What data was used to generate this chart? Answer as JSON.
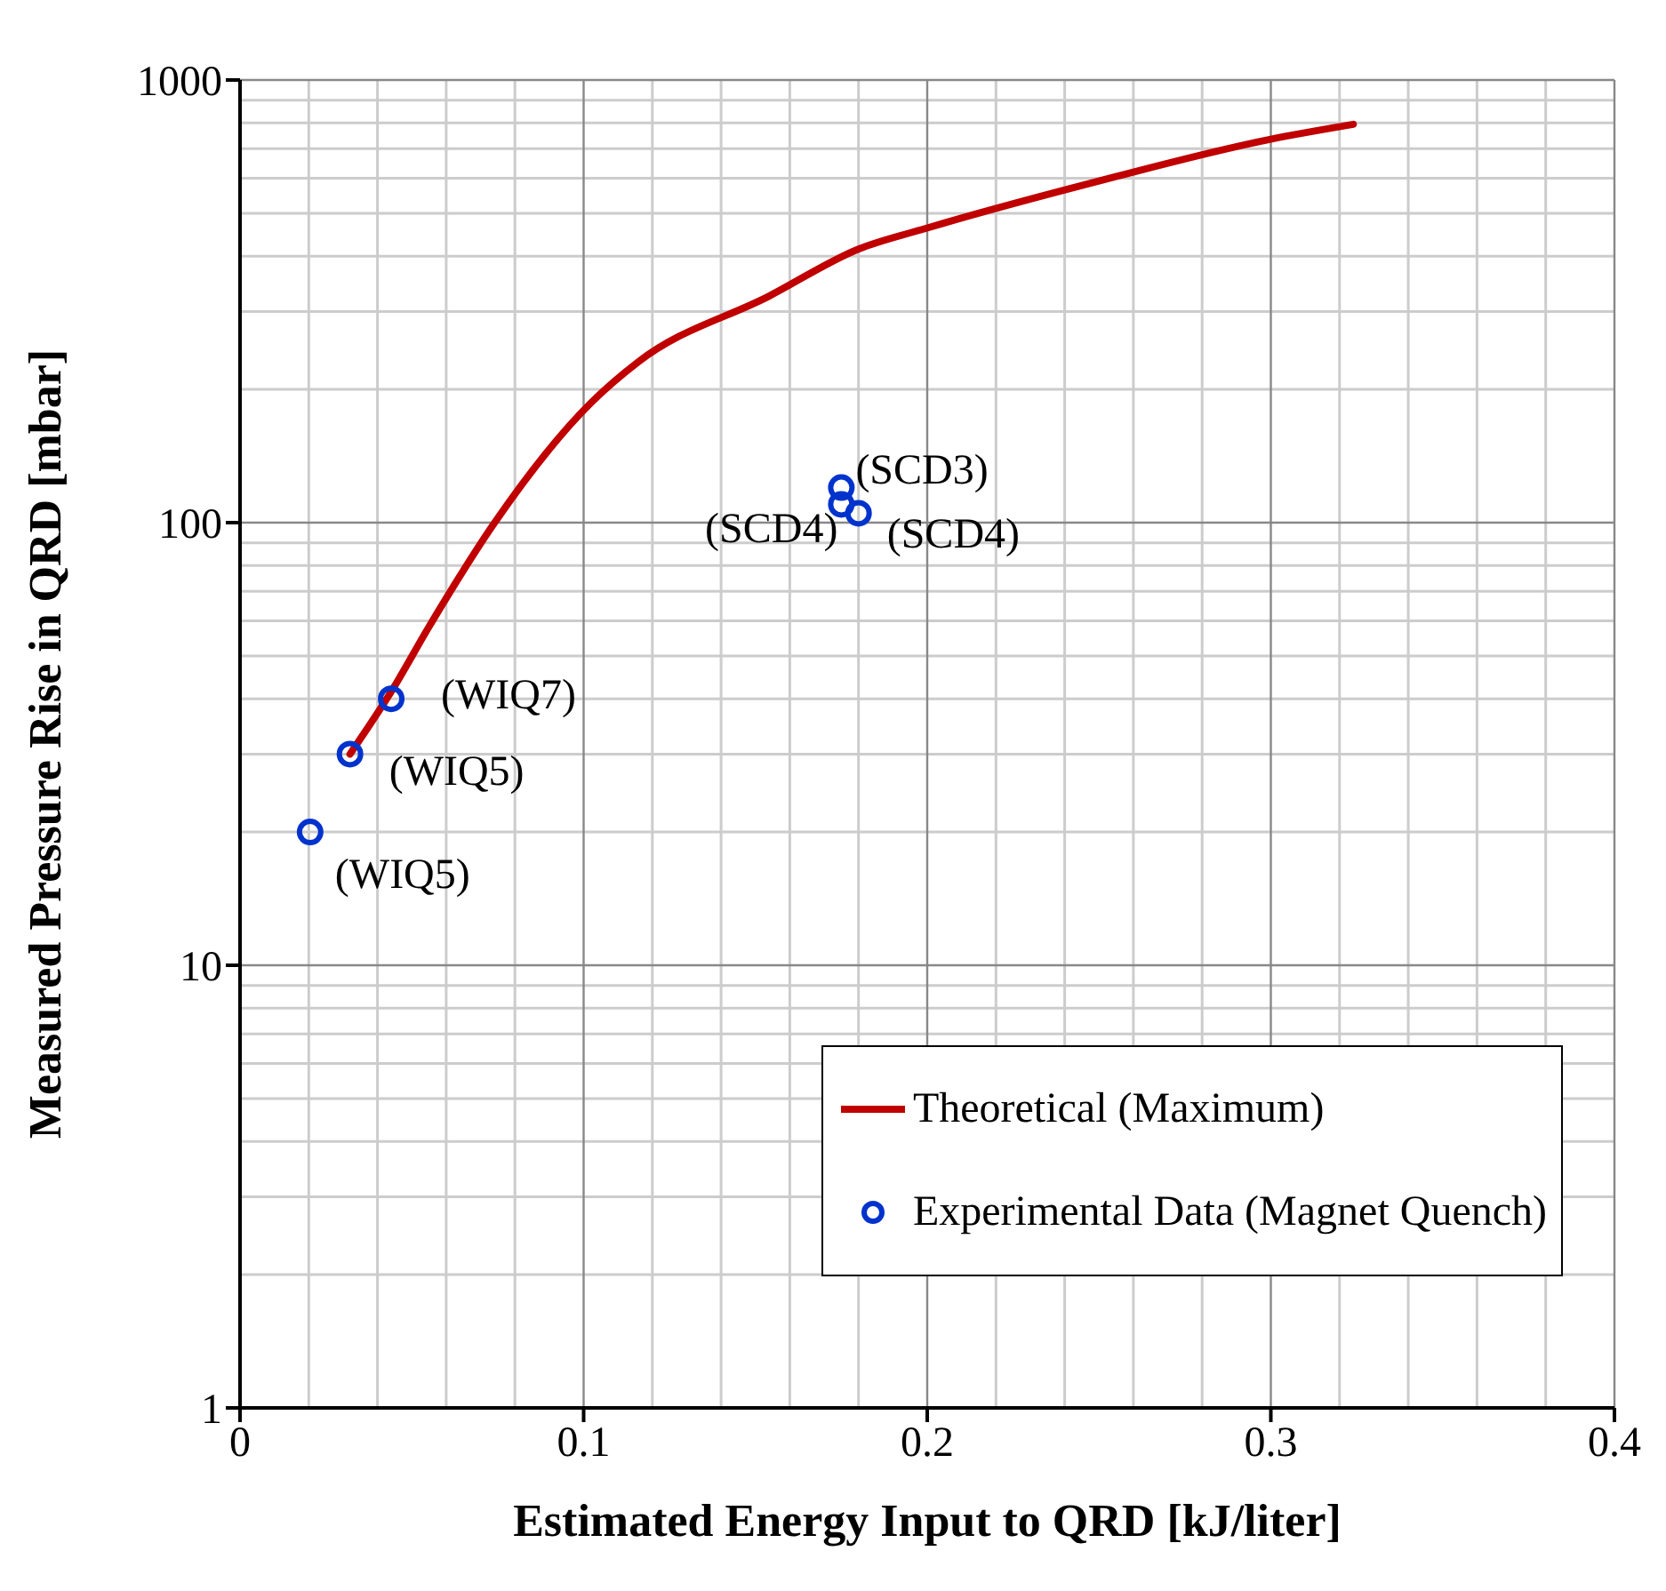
{
  "chart_data": {
    "type": "line",
    "xlabel": "Estimated Energy Input to QRD [kJ/liter]",
    "ylabel": "Measured Pressure Rise in QRD [mbar]",
    "series": [
      {
        "name": "Theoretical (Maximum)",
        "color": "#c00000",
        "marker": "none",
        "x": [
          0.032,
          0.0444,
          0.0549,
          0.0741,
          0.102,
          0.116,
          0.154,
          0.18,
          0.2,
          0.247,
          0.3,
          0.324
        ],
        "values": [
          30,
          42,
          58,
          100,
          186,
          231,
          325,
          415,
          463,
          583,
          735,
          794
        ]
      },
      {
        "name": "Experimental Data (Magnet Quench)",
        "type": "scatter",
        "color": "#0033cc",
        "marker": "circle",
        "x": [
          0.0204,
          0.032,
          0.044,
          0.175,
          0.175,
          0.18
        ],
        "values": [
          20,
          30,
          40,
          120,
          110,
          105
        ]
      }
    ],
    "xlim": [
      0,
      0.4
    ],
    "xticks": [
      0,
      0.1,
      0.2,
      0.3,
      0.4
    ],
    "ylim": [
      1,
      1000
    ],
    "yticks": [
      1,
      10,
      100,
      1000
    ],
    "log": "y",
    "grid": true,
    "legend": "bottom right",
    "annotations": [
      {
        "text": "(WIQ5)",
        "x": 0.0204,
        "y": 20
      },
      {
        "text": "(WIQ5)",
        "x": 0.032,
        "y": 30
      },
      {
        "text": "(WIQ7)",
        "x": 0.044,
        "y": 40
      },
      {
        "text": "(SCD3)",
        "x": 0.175,
        "y": 120
      },
      {
        "text": "(SCD4)",
        "x": 0.175,
        "y": 110
      },
      {
        "text": "(SCD4)",
        "x": 0.18,
        "y": 105
      }
    ]
  }
}
